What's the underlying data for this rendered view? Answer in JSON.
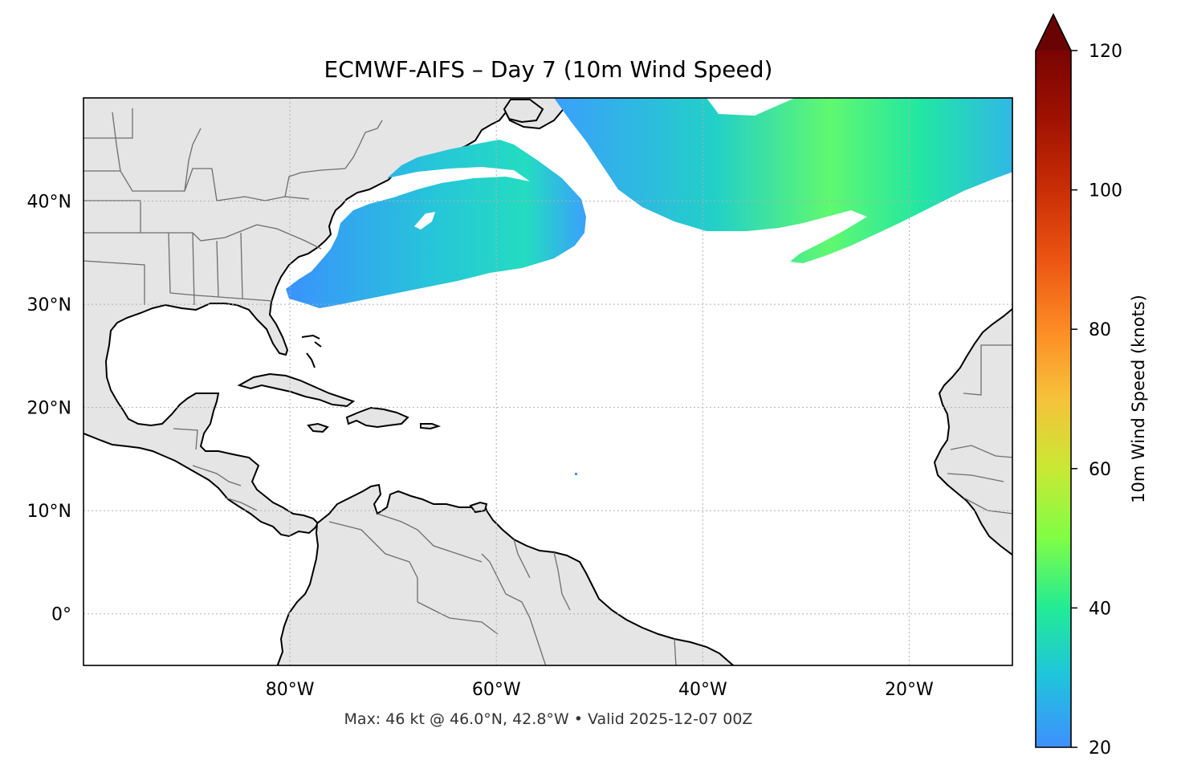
{
  "title": "ECMWF-AIFS – Day 7 (10m Wind Speed)",
  "footer": "Max: 46 kt @ 46.0°N, 42.8°W • Valid 2025-12-07 00Z",
  "map": {
    "lon_range": [
      -100,
      -10
    ],
    "lat_range": [
      -5,
      50
    ],
    "lat_tick_labels": [
      {
        "lat": 40,
        "label": "40°N"
      },
      {
        "lat": 30,
        "label": "30°N"
      },
      {
        "lat": 20,
        "label": "20°N"
      },
      {
        "lat": 10,
        "label": "10°N"
      },
      {
        "lat": 0,
        "label": "0°"
      }
    ],
    "lon_tick_labels": [
      {
        "lon": -80,
        "label": "80°W"
      },
      {
        "lon": -60,
        "label": "60°W"
      },
      {
        "lon": -40,
        "label": "40°W"
      },
      {
        "lon": -20,
        "label": "20°W"
      }
    ],
    "land_color": "#e5e5e5",
    "coastline_color": "#000000",
    "border_color": "#6e6e6e",
    "gridlines": true
  },
  "colorbar": {
    "label": "10m Wind Speed (knots)",
    "min": 20,
    "max": 120,
    "extend": "max",
    "ticks": [
      "20",
      "40",
      "60",
      "80",
      "100",
      "120"
    ],
    "colormap": "turbo",
    "stops": [
      {
        "v": 20,
        "c": "#3f8ffe"
      },
      {
        "v": 30,
        "c": "#20c3dd"
      },
      {
        "v": 40,
        "c": "#22eb96"
      },
      {
        "v": 50,
        "c": "#80fe45"
      },
      {
        "v": 60,
        "c": "#c9e834"
      },
      {
        "v": 70,
        "c": "#f6c23a"
      },
      {
        "v": 80,
        "c": "#fd8b25"
      },
      {
        "v": 90,
        "c": "#eb5512"
      },
      {
        "v": 100,
        "c": "#c92e06"
      },
      {
        "v": 110,
        "c": "#a01201"
      },
      {
        "v": 120,
        "c": "#7a0403"
      }
    ],
    "extend_color": "#6a0404"
  },
  "wind_field": {
    "max_knots": 46,
    "max_location": "46.0°N, 42.8°W",
    "valid_time": "2025-12-07 00Z"
  }
}
